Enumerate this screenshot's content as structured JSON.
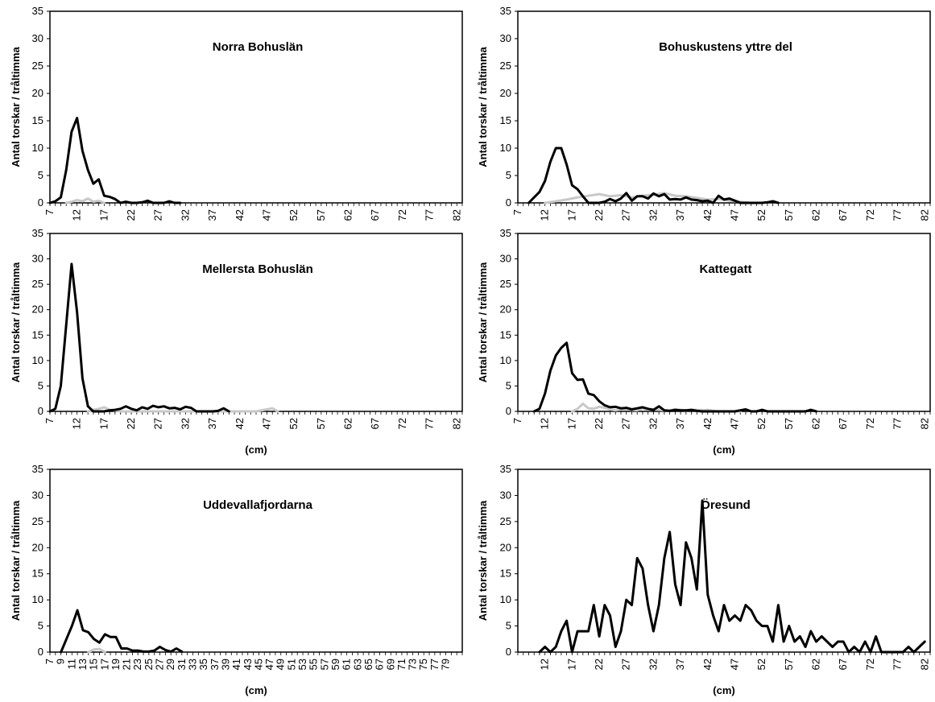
{
  "chart_data": [
    {
      "type": "line",
      "title": "Norra Bohuslän",
      "ylabel": "Antal torskar / tråltimma",
      "xlabel": "",
      "ylim": [
        0,
        35
      ],
      "yticks": [
        "0",
        "5",
        "10",
        "15",
        "20",
        "25",
        "30",
        "35"
      ],
      "xlim": [
        7,
        83
      ],
      "xticks": [
        "7",
        "12",
        "17",
        "22",
        "27",
        "32",
        "37",
        "42",
        "47",
        "52",
        "57",
        "62",
        "67",
        "72",
        "77",
        "82"
      ],
      "series": [
        {
          "color": "#000000",
          "x": [
            7,
            8,
            9,
            10,
            11,
            12,
            13,
            14,
            15,
            16,
            17,
            18,
            19,
            20,
            21,
            22,
            23,
            24,
            25,
            26,
            27,
            28,
            29,
            30,
            31
          ],
          "y": [
            0,
            0.3,
            1,
            6,
            13,
            15.5,
            9.5,
            6,
            3.5,
            4.3,
            1.3,
            1.1,
            0.7,
            0,
            0.2,
            0,
            0,
            0.1,
            0.4,
            0,
            0,
            0,
            0.3,
            0,
            0
          ]
        },
        {
          "color": "#c8c8c8",
          "x": [
            10,
            11,
            12,
            13,
            14,
            15,
            16,
            17
          ],
          "y": [
            0,
            0.2,
            0.5,
            0.3,
            0.8,
            0.2,
            0.4,
            0
          ]
        }
      ]
    },
    {
      "type": "line",
      "title": "Bohuskustens yttre del",
      "ylabel": "Antal torskar / tråltimma",
      "xlabel": "",
      "ylim": [
        0,
        35
      ],
      "yticks": [
        "0",
        "5",
        "10",
        "15",
        "20",
        "25",
        "30",
        "35"
      ],
      "xlim": [
        7,
        83
      ],
      "xticks": [
        "7",
        "12",
        "17",
        "22",
        "27",
        "32",
        "37",
        "42",
        "47",
        "52",
        "57",
        "62",
        "67",
        "72",
        "77",
        "82"
      ],
      "series": [
        {
          "color": "#000000",
          "x": [
            9,
            10,
            11,
            12,
            13,
            14,
            15,
            16,
            17,
            18,
            19,
            20,
            21,
            22,
            23,
            24,
            25,
            26,
            27,
            28,
            29,
            30,
            31,
            32,
            33,
            34,
            35,
            36,
            37,
            38,
            39,
            40,
            41,
            42,
            43,
            44,
            45,
            46,
            47,
            48,
            49,
            50,
            51,
            52,
            53,
            54,
            55
          ],
          "y": [
            0,
            1,
            2,
            4,
            7.5,
            10,
            10,
            7,
            3.2,
            2.5,
            1.2,
            0,
            0,
            0,
            0.2,
            0.7,
            0.3,
            0.8,
            1.8,
            0.4,
            1.2,
            1.2,
            0.8,
            1.7,
            1.2,
            1.6,
            0.6,
            0.7,
            0.6,
            1.0,
            0.6,
            0.5,
            0.3,
            0.4,
            0,
            1.3,
            0.6,
            0.8,
            0.4,
            0,
            0,
            0,
            0,
            0,
            0.1,
            0.3,
            0
          ]
        },
        {
          "color": "#c8c8c8",
          "x": [
            12,
            14,
            16,
            18,
            20,
            22,
            24,
            26,
            28,
            30,
            32,
            34,
            36,
            38,
            40,
            42,
            44,
            46,
            48,
            50
          ],
          "y": [
            0,
            0.3,
            0.6,
            1.0,
            1.3,
            1.6,
            1.2,
            1.4,
            1.0,
            1.3,
            1.5,
            1.8,
            1.3,
            1.2,
            0.9,
            0.6,
            0.7,
            0.4,
            0.2,
            0
          ]
        }
      ]
    },
    {
      "type": "line",
      "title": "Mellersta Bohuslän",
      "ylabel": "Antal torskar / tråltimma",
      "xlabel": "(cm)",
      "ylim": [
        0,
        35
      ],
      "yticks": [
        "0",
        "5",
        "10",
        "15",
        "20",
        "25",
        "30",
        "35"
      ],
      "xlim": [
        7,
        83
      ],
      "xticks": [
        "7",
        "12",
        "17",
        "22",
        "27",
        "32",
        "37",
        "42",
        "47",
        "52",
        "57",
        "62",
        "67",
        "72",
        "77",
        "82"
      ],
      "series": [
        {
          "color": "#000000",
          "x": [
            7,
            8,
            9,
            10,
            11,
            12,
            13,
            14,
            15,
            16,
            17,
            18,
            19,
            20,
            21,
            22,
            23,
            24,
            25,
            26,
            27,
            28,
            29,
            30,
            31,
            32,
            33,
            34,
            35,
            36,
            37,
            38,
            39,
            40
          ],
          "y": [
            0,
            0.5,
            5,
            17,
            29,
            19.5,
            6.5,
            1,
            0,
            0,
            0,
            0.2,
            0.3,
            0.5,
            1.0,
            0.5,
            0.2,
            0.8,
            0.5,
            1.1,
            0.8,
            1.0,
            0.6,
            0.7,
            0.4,
            0.9,
            0.7,
            0,
            0,
            0,
            0,
            0.1,
            0.6,
            0
          ]
        },
        {
          "color": "#c8c8c8",
          "x": [
            14,
            15,
            16,
            17,
            18,
            19,
            20,
            25,
            30,
            35,
            40,
            45,
            47,
            48,
            49
          ],
          "y": [
            0,
            0.3,
            0.5,
            0.8,
            0.3,
            0.2,
            0,
            0,
            0,
            0,
            0,
            0,
            0.4,
            0.6,
            0
          ]
        }
      ]
    },
    {
      "type": "line",
      "title": "Kattegatt",
      "ylabel": "Antal torskar / tråltimma",
      "xlabel": "(cm)",
      "ylim": [
        0,
        35
      ],
      "yticks": [
        "0",
        "5",
        "10",
        "15",
        "20",
        "25",
        "30",
        "35"
      ],
      "xlim": [
        7,
        83
      ],
      "xticks": [
        "7",
        "12",
        "17",
        "22",
        "27",
        "32",
        "37",
        "42",
        "47",
        "52",
        "57",
        "62",
        "67",
        "72",
        "77",
        "82"
      ],
      "series": [
        {
          "color": "#000000",
          "x": [
            10,
            11,
            12,
            13,
            14,
            15,
            16,
            17,
            18,
            19,
            20,
            21,
            22,
            23,
            24,
            25,
            26,
            27,
            28,
            29,
            30,
            31,
            32,
            33,
            34,
            35,
            36,
            37,
            38,
            39,
            40,
            41,
            42,
            43,
            44,
            45,
            46,
            47,
            48,
            49,
            50,
            51,
            52,
            53,
            54,
            55,
            56,
            57,
            58,
            59,
            60,
            61,
            62
          ],
          "y": [
            0,
            0.5,
            3.5,
            8,
            11,
            12.5,
            13.5,
            7.5,
            6.2,
            6.3,
            3.5,
            3.2,
            2.0,
            1.2,
            0.8,
            0.9,
            0.6,
            0.7,
            0.4,
            0.6,
            0.8,
            0.5,
            0.3,
            1.0,
            0.2,
            0.1,
            0.3,
            0.2,
            0.2,
            0.3,
            0.1,
            0,
            0,
            0,
            0,
            0,
            0,
            0,
            0.2,
            0.4,
            0,
            0,
            0.3,
            0,
            0,
            0,
            0,
            0,
            0,
            0,
            0,
            0.3,
            0
          ]
        },
        {
          "color": "#c8c8c8",
          "x": [
            17,
            18,
            19,
            20,
            21,
            22,
            23,
            24,
            25,
            26,
            27,
            28,
            29,
            30,
            31,
            32,
            33,
            34,
            35,
            36,
            37,
            38,
            39,
            40,
            41,
            42,
            43,
            44,
            45,
            46,
            47,
            48
          ],
          "y": [
            0,
            0.5,
            1.5,
            0.6,
            0.5,
            0.9,
            0.7,
            0.4,
            0.2,
            0.4,
            0.5,
            0.3,
            0.2,
            0.6,
            0.3,
            0.4,
            0.3,
            0.2,
            0.2,
            0.4,
            0.3,
            0.2,
            0.3,
            0.3,
            0.2,
            0.3,
            0.1,
            0,
            0,
            0,
            0,
            0
          ]
        }
      ]
    },
    {
      "type": "line",
      "title": "Uddevallafjordarna",
      "ylabel": "Antal torskar / tråltimma",
      "xlabel": "(cm)",
      "ylim": [
        0,
        35
      ],
      "yticks": [
        "0",
        "5",
        "10",
        "15",
        "20",
        "25",
        "30",
        "35"
      ],
      "xlim": [
        7,
        82
      ],
      "xticks": [
        "7",
        "9",
        "11",
        "13",
        "15",
        "17",
        "19",
        "21",
        "23",
        "25",
        "27",
        "29",
        "31",
        "33",
        "35",
        "37",
        "39",
        "41",
        "43",
        "45",
        "47",
        "49",
        "51",
        "53",
        "55",
        "57",
        "59",
        "61",
        "63",
        "65",
        "67",
        "69",
        "71",
        "73",
        "75",
        "77",
        "79"
      ],
      "series": [
        {
          "color": "#000000",
          "x": [
            9,
            10,
            11,
            12,
            13,
            14,
            15,
            16,
            17,
            18,
            19,
            20,
            21,
            22,
            23,
            24,
            25,
            26,
            27,
            28,
            29,
            30,
            31
          ],
          "y": [
            0,
            2.5,
            5,
            8,
            4.2,
            3.8,
            2.5,
            1.8,
            3.4,
            2.9,
            2.9,
            0.7,
            0.7,
            0.3,
            0.3,
            0.1,
            0.1,
            0.3,
            1.0,
            0.4,
            0.1,
            0.7,
            0.1
          ]
        },
        {
          "color": "#c8c8c8",
          "x": [
            14,
            15,
            16,
            17
          ],
          "y": [
            0,
            0.5,
            0.6,
            0
          ]
        }
      ]
    },
    {
      "type": "line",
      "title": "Öresund",
      "ylabel": "Antal torskar / tråltimma",
      "xlabel": "(cm)",
      "ylim": [
        0,
        35
      ],
      "yticks": [
        "0",
        "5",
        "10",
        "15",
        "20",
        "25",
        "30",
        "35"
      ],
      "xlim": [
        7,
        83
      ],
      "xticks": [
        "12",
        "17",
        "22",
        "27",
        "32",
        "37",
        "42",
        "47",
        "52",
        "57",
        "62",
        "67",
        "72",
        "77",
        "82"
      ],
      "series": [
        {
          "color": "#000000",
          "x": [
            11,
            12,
            13,
            14,
            15,
            16,
            17,
            18,
            19,
            20,
            21,
            22,
            23,
            24,
            25,
            26,
            27,
            28,
            29,
            30,
            31,
            32,
            33,
            34,
            35,
            36,
            37,
            38,
            39,
            40,
            41,
            42,
            43,
            44,
            45,
            46,
            47,
            48,
            49,
            50,
            51,
            52,
            53,
            54,
            55,
            56,
            57,
            58,
            59,
            60,
            61,
            62,
            63,
            64,
            65,
            66,
            67,
            68,
            69,
            70,
            71,
            72,
            73,
            74,
            75,
            76,
            77,
            78,
            79,
            80,
            81,
            82
          ],
          "y": [
            0,
            1,
            0,
            1,
            4,
            6,
            0,
            4,
            4,
            4,
            9,
            3,
            9,
            7,
            1,
            4,
            10,
            9,
            18,
            16,
            9,
            4,
            9,
            18,
            23,
            13,
            9,
            21,
            18,
            12,
            29,
            11,
            7,
            4,
            9,
            6,
            7,
            6,
            9,
            8,
            6,
            5,
            5,
            2,
            9,
            2,
            5,
            2,
            3,
            1,
            4,
            2,
            3,
            2,
            1,
            2,
            2,
            0,
            1,
            0,
            2,
            0,
            3,
            0,
            0,
            0,
            0,
            0,
            1,
            0,
            1,
            2
          ]
        }
      ]
    }
  ]
}
